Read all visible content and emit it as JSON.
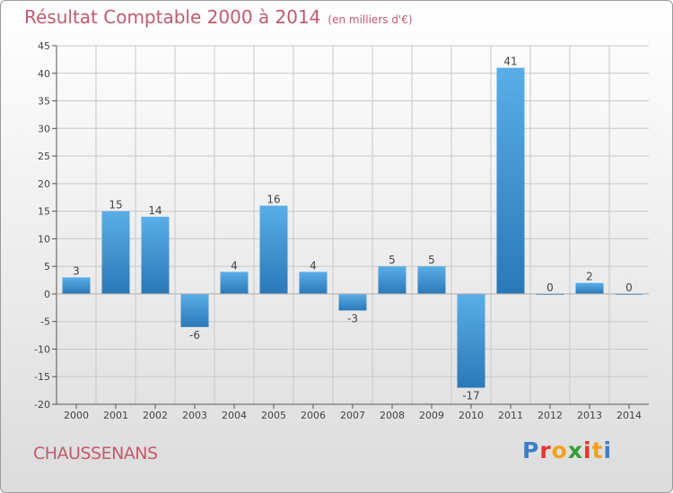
{
  "header": {
    "title": "Résultat Comptable 2000 à 2014",
    "subtitle": "(en milliers d'€)"
  },
  "footer": {
    "commune": "CHAUSSENANS",
    "logo_text": "Proxiti",
    "logo_colors": [
      "#3a7fc8",
      "#e5352e",
      "#f0a21d",
      "#3a9a3a",
      "#e5352e",
      "#f0a21d",
      "#3a7fc8"
    ]
  },
  "colors": {
    "title": "#c25a6e",
    "bar_light": "#5aaee8",
    "bar_dark": "#2a78b8",
    "grid": "#c8c8c8",
    "axis": "#555555",
    "text": "#444444"
  },
  "chart_data": {
    "type": "bar",
    "title": "Résultat Comptable 2000 à 2014",
    "subtitle": "(en milliers d'€)",
    "xlabel": "",
    "ylabel": "",
    "categories": [
      "2000",
      "2001",
      "2002",
      "2003",
      "2004",
      "2005",
      "2006",
      "2007",
      "2008",
      "2009",
      "2010",
      "2011",
      "2012",
      "2013",
      "2014"
    ],
    "values": [
      3,
      15,
      14,
      -6,
      4,
      16,
      4,
      -3,
      5,
      5,
      -17,
      41,
      0,
      2,
      0
    ],
    "ylim": [
      -20,
      45
    ],
    "yticks": [
      -20,
      -15,
      -10,
      -5,
      0,
      5,
      10,
      15,
      20,
      25,
      30,
      35,
      40,
      45
    ],
    "grid": true
  }
}
